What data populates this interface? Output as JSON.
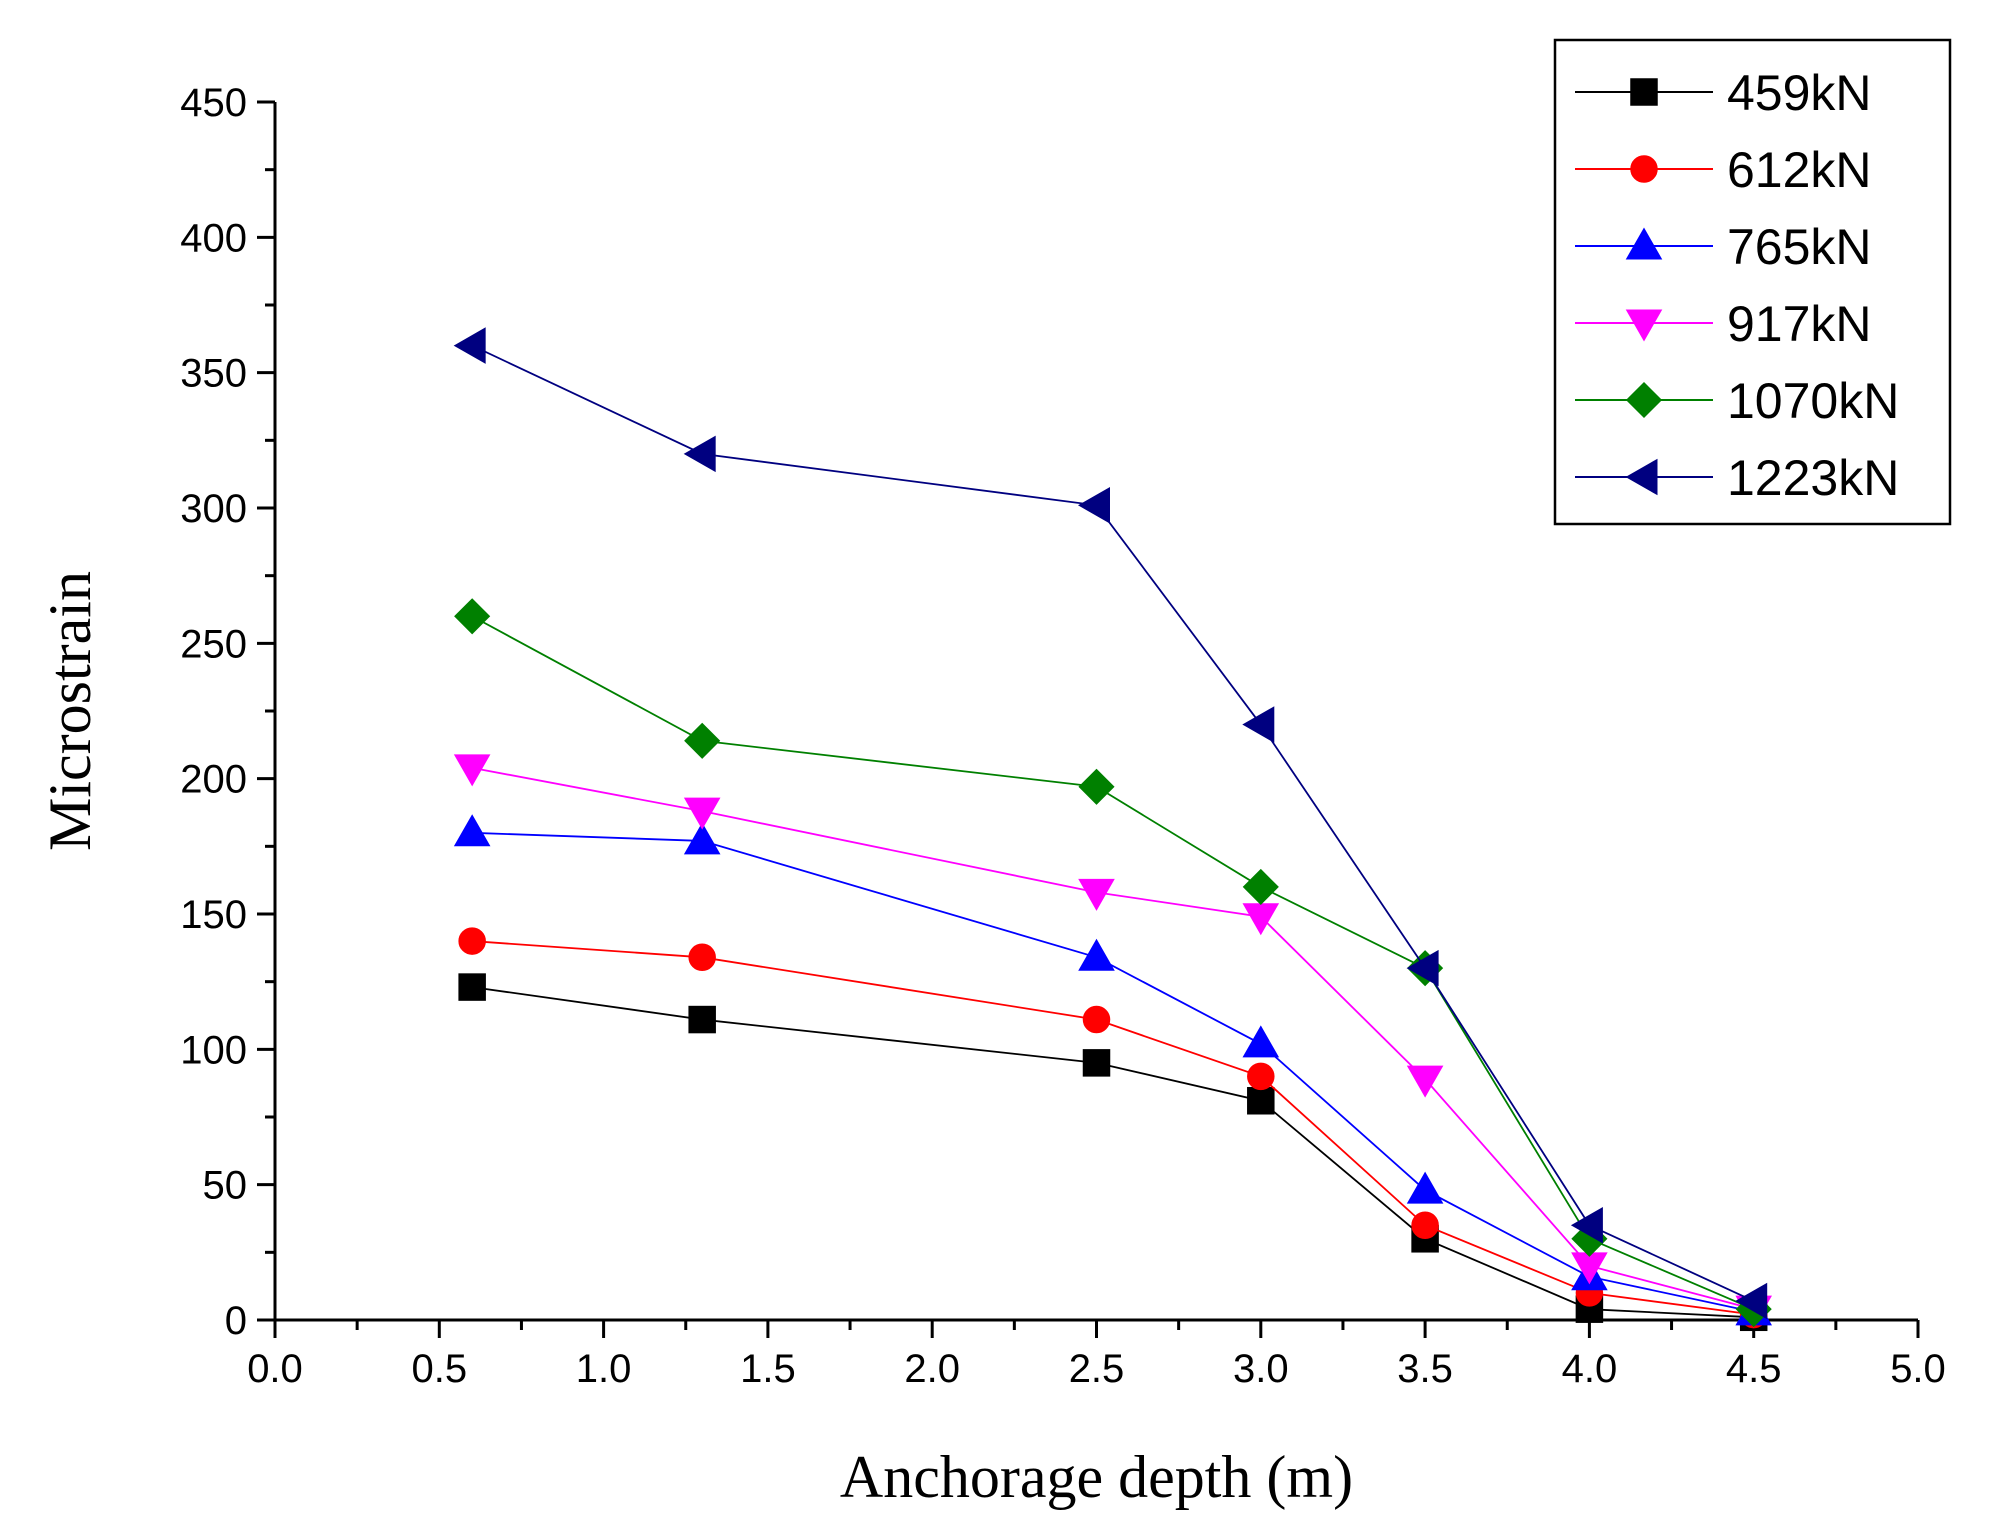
{
  "chart_data": {
    "type": "line",
    "title": "",
    "xlabel": "Anchorage depth (m)",
    "ylabel": "Microstrain",
    "xlim": [
      0.0,
      5.0
    ],
    "ylim": [
      0,
      450
    ],
    "xticks": [
      "0.0",
      "0.5",
      "1.0",
      "1.5",
      "2.0",
      "2.5",
      "3.0",
      "3.5",
      "4.0",
      "4.5",
      "5.0"
    ],
    "yticks": [
      "0",
      "50",
      "100",
      "150",
      "200",
      "250",
      "300",
      "350",
      "400",
      "450"
    ],
    "grid": false,
    "legend_position": "top-right",
    "x": [
      0.6,
      1.3,
      2.5,
      3.0,
      3.5,
      4.0,
      4.5
    ],
    "series": [
      {
        "name": "459kN",
        "color": "#000000",
        "marker": "square",
        "values": [
          123,
          111,
          95,
          81,
          30,
          4,
          1
        ]
      },
      {
        "name": "612kN",
        "color": "#ff0000",
        "marker": "circle",
        "values": [
          140,
          134,
          111,
          90,
          35,
          10,
          2
        ]
      },
      {
        "name": "765kN",
        "color": "#0000ff",
        "marker": "triangle-up",
        "values": [
          180,
          177,
          134,
          102,
          48,
          16,
          3
        ]
      },
      {
        "name": "917kN",
        "color": "#ff00ff",
        "marker": "triangle-down",
        "values": [
          204,
          188,
          158,
          149,
          89,
          20,
          4
        ]
      },
      {
        "name": "1070kN",
        "color": "#008000",
        "marker": "diamond",
        "values": [
          260,
          214,
          197,
          160,
          130,
          30,
          4
        ]
      },
      {
        "name": "1223kN",
        "color": "#000080",
        "marker": "triangle-left",
        "values": [
          360,
          320,
          301,
          220,
          130,
          35,
          7
        ]
      }
    ]
  }
}
